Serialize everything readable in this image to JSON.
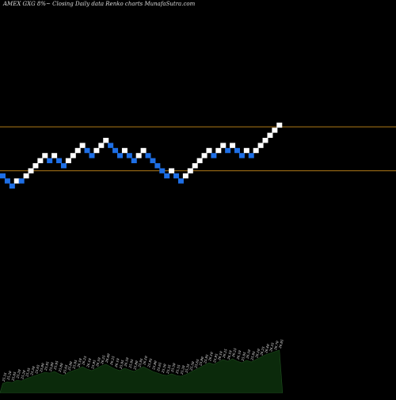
{
  "chart_data": {
    "type": "renko",
    "title": "AMEX  GXG  8%~  Closing Daily data  Renko  charts MunafaSutra.com",
    "colors": {
      "background": "#000000",
      "up_brick": "#ffffff",
      "down_brick": "#1e6fe6",
      "reference_line": "#b07a18",
      "volume_fill": "#0b2a0b",
      "volume_label": "#ffffff"
    },
    "reference_lines": [
      26.8,
      25.5
    ],
    "bricks": [
      {
        "dir": "down",
        "price": 25.35
      },
      {
        "dir": "down",
        "price": 25.2
      },
      {
        "dir": "down",
        "price": 25.05
      },
      {
        "dir": "up",
        "price": 25.2
      },
      {
        "dir": "down",
        "price": 25.2
      },
      {
        "dir": "up",
        "price": 25.35
      },
      {
        "dir": "up",
        "price": 25.5
      },
      {
        "dir": "up",
        "price": 25.65
      },
      {
        "dir": "up",
        "price": 25.8
      },
      {
        "dir": "up",
        "price": 25.95
      },
      {
        "dir": "down",
        "price": 25.8
      },
      {
        "dir": "up",
        "price": 25.95
      },
      {
        "dir": "down",
        "price": 25.8
      },
      {
        "dir": "down",
        "price": 25.65
      },
      {
        "dir": "up",
        "price": 25.8
      },
      {
        "dir": "up",
        "price": 25.95
      },
      {
        "dir": "up",
        "price": 26.1
      },
      {
        "dir": "up",
        "price": 26.25
      },
      {
        "dir": "down",
        "price": 26.1
      },
      {
        "dir": "down",
        "price": 25.95
      },
      {
        "dir": "up",
        "price": 26.1
      },
      {
        "dir": "up",
        "price": 26.25
      },
      {
        "dir": "up",
        "price": 26.4
      },
      {
        "dir": "down",
        "price": 26.25
      },
      {
        "dir": "down",
        "price": 26.1
      },
      {
        "dir": "down",
        "price": 25.95
      },
      {
        "dir": "up",
        "price": 26.1
      },
      {
        "dir": "down",
        "price": 25.95
      },
      {
        "dir": "down",
        "price": 25.8
      },
      {
        "dir": "up",
        "price": 25.95
      },
      {
        "dir": "up",
        "price": 26.1
      },
      {
        "dir": "down",
        "price": 25.95
      },
      {
        "dir": "down",
        "price": 25.8
      },
      {
        "dir": "down",
        "price": 25.65
      },
      {
        "dir": "down",
        "price": 25.5
      },
      {
        "dir": "down",
        "price": 25.35
      },
      {
        "dir": "up",
        "price": 25.5
      },
      {
        "dir": "down",
        "price": 25.35
      },
      {
        "dir": "down",
        "price": 25.2
      },
      {
        "dir": "up",
        "price": 25.35
      },
      {
        "dir": "up",
        "price": 25.5
      },
      {
        "dir": "up",
        "price": 25.65
      },
      {
        "dir": "up",
        "price": 25.8
      },
      {
        "dir": "up",
        "price": 25.95
      },
      {
        "dir": "up",
        "price": 26.1
      },
      {
        "dir": "down",
        "price": 25.95
      },
      {
        "dir": "up",
        "price": 26.1
      },
      {
        "dir": "up",
        "price": 26.25
      },
      {
        "dir": "down",
        "price": 26.1
      },
      {
        "dir": "up",
        "price": 26.25
      },
      {
        "dir": "down",
        "price": 26.1
      },
      {
        "dir": "down",
        "price": 25.95
      },
      {
        "dir": "up",
        "price": 26.1
      },
      {
        "dir": "down",
        "price": 25.95
      },
      {
        "dir": "up",
        "price": 26.1
      },
      {
        "dir": "up",
        "price": 26.25
      },
      {
        "dir": "up",
        "price": 26.4
      },
      {
        "dir": "up",
        "price": 26.55
      },
      {
        "dir": "up",
        "price": 26.7
      },
      {
        "dir": "up",
        "price": 26.85
      }
    ],
    "volume": {
      "values": [
        12,
        14,
        13,
        16,
        15,
        18,
        20,
        22,
        24,
        26,
        25,
        27,
        24,
        22,
        26,
        28,
        30,
        33,
        30,
        28,
        31,
        34,
        36,
        33,
        30,
        28,
        31,
        29,
        27,
        30,
        33,
        30,
        27,
        25,
        23,
        22,
        24,
        22,
        21,
        23,
        26,
        29,
        32,
        35,
        38,
        36,
        39,
        42,
        40,
        43,
        40,
        38,
        41,
        39,
        42,
        45,
        48,
        50,
        52,
        54
      ],
      "labels": [
        "25.35",
        "25.20",
        "25.05",
        "25.20",
        "25.20",
        "25.35",
        "25.50",
        "25.65",
        "25.80",
        "25.95",
        "25.80",
        "25.95",
        "25.80",
        "25.65",
        "25.80",
        "25.95",
        "26.10",
        "26.25",
        "26.10",
        "25.95",
        "26.10",
        "26.25",
        "26.40",
        "26.25",
        "26.10",
        "25.95",
        "26.10",
        "25.95",
        "25.80",
        "25.95",
        "26.10",
        "25.95",
        "25.80",
        "25.65",
        "25.50",
        "25.35",
        "25.50",
        "25.35",
        "25.20",
        "25.35",
        "25.50",
        "25.65",
        "25.80",
        "25.95",
        "26.10",
        "25.95",
        "26.10",
        "26.25",
        "26.10",
        "26.25",
        "26.10",
        "25.95",
        "26.10",
        "25.95",
        "26.10",
        "26.25",
        "26.40",
        "26.55",
        "26.70",
        "26.85"
      ]
    }
  }
}
